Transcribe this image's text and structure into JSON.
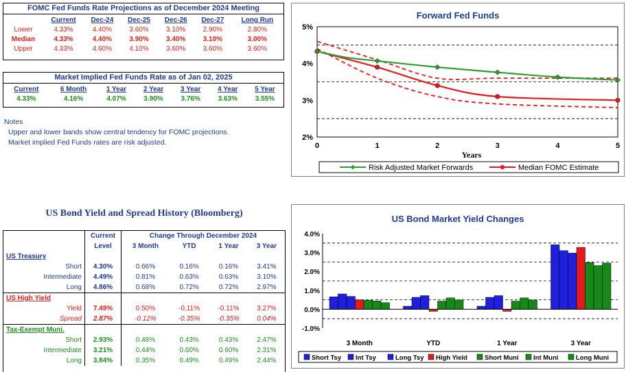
{
  "fomc": {
    "title": "FOMC Fed Funds Rate Projections as of December 2024 Meeting",
    "columns": [
      "Current",
      "Dec-24",
      "Dec-25",
      "Dec-26",
      "Dec-27",
      "Long Run"
    ],
    "rows": [
      {
        "label": "Lower",
        "values": [
          "4.33%",
          "4.40%",
          "3.60%",
          "3.10%",
          "2.90%",
          "2.80%"
        ],
        "color": "#e0201b"
      },
      {
        "label": "Median",
        "values": [
          "4.33%",
          "4.40%",
          "3.90%",
          "3.40%",
          "3.10%",
          "3.00%"
        ],
        "color": "#e0201b"
      },
      {
        "label": "Upper",
        "values": [
          "4.33%",
          "4.60%",
          "4.10%",
          "3.60%",
          "3.60%",
          "3.60%"
        ],
        "color": "#e0201b"
      }
    ]
  },
  "market": {
    "title": "Market Implied Fed Funds Rate as of Jan 02, 2025",
    "columns": [
      "Current",
      "6 Month",
      "1 Year",
      "2 Year",
      "3 Year",
      "4 Year",
      "5 Year"
    ],
    "values": [
      "4.33%",
      "4.16%",
      "4.07%",
      "3.90%",
      "3.76%",
      "3.63%",
      "3.55%"
    ]
  },
  "notes": {
    "heading": "Notes",
    "lines": [
      "Upper and lower bands show central tendency for FOMC projections.",
      "Market implied Fed Funds rates are risk adjusted."
    ]
  },
  "bond": {
    "title": "US Bond Yield and Spread History (Bloomberg)",
    "current_header": [
      "Current",
      "Level"
    ],
    "change_header": "Change Through December 2024",
    "period_headers": [
      "3 Month",
      "YTD",
      "1 Year",
      "3 Year"
    ],
    "sections": [
      {
        "name": "US Treasury",
        "color": "#1f3a93",
        "rows": [
          {
            "label": "Short",
            "current": "4.30%",
            "changes": [
              "0.66%",
              "0.16%",
              "0.16%",
              "3.41%"
            ],
            "italic": false
          },
          {
            "label": "Intermediate",
            "current": "4.49%",
            "changes": [
              "0.81%",
              "0.63%",
              "0.63%",
              "3.10%"
            ],
            "italic": false
          },
          {
            "label": "Long",
            "current": "4.86%",
            "changes": [
              "0.68%",
              "0.72%",
              "0.72%",
              "2.97%"
            ],
            "italic": false
          }
        ]
      },
      {
        "name": "US High Yield",
        "color": "#e0201b",
        "rows": [
          {
            "label": "Yield",
            "current": "7.49%",
            "changes": [
              "0.50%",
              "-0.11%",
              "-0.11%",
              "3.27%"
            ],
            "italic": false
          },
          {
            "label": "Spread",
            "current": "2.87%",
            "changes": [
              "-0.12%",
              "-0.35%",
              "-0.35%",
              "0.04%"
            ],
            "italic": true
          }
        ]
      },
      {
        "name": "Tax-Exempt Muni.",
        "color": "#1e8c1e",
        "rows": [
          {
            "label": "Short",
            "current": "2.93%",
            "changes": [
              "0.48%",
              "0.43%",
              "0.43%",
              "2.47%"
            ],
            "italic": false
          },
          {
            "label": "Intermediate",
            "current": "3.21%",
            "changes": [
              "0.44%",
              "0.60%",
              "0.60%",
              "2.31%"
            ],
            "italic": false
          },
          {
            "label": "Long",
            "current": "3.84%",
            "changes": [
              "0.35%",
              "0.49%",
              "0.49%",
              "2.44%"
            ],
            "italic": false
          }
        ]
      }
    ]
  },
  "chart_data": [
    {
      "type": "line",
      "title": "Forward Fed Funds",
      "xlabel": "Years",
      "ylabel": "",
      "xlim": [
        0,
        5
      ],
      "ylim": [
        2,
        5
      ],
      "x_ticks": [
        "0",
        "1",
        "2",
        "3",
        "4",
        "5"
      ],
      "y_ticks": [
        "2%",
        "3%",
        "4%",
        "5%"
      ],
      "grid": "dashed horizontal at 2.5%, 3.5%, 4.5%",
      "legend_position": "bottom",
      "series": [
        {
          "name": "Risk Adjusted Market Forwards",
          "color": "#2ca02c",
          "marker": "diamond",
          "x": [
            0,
            0.5,
            1,
            2,
            3,
            4,
            5
          ],
          "y": [
            4.33,
            4.16,
            4.07,
            3.9,
            3.76,
            3.63,
            3.55
          ]
        },
        {
          "name": "Median FOMC Estimate",
          "color": "#e41a1c",
          "marker": "circle",
          "x": [
            0,
            1,
            2,
            3,
            5
          ],
          "y": [
            4.33,
            3.9,
            3.4,
            3.1,
            3.0
          ]
        },
        {
          "name": "",
          "color": "#e41a1c",
          "style": "dashed",
          "x": [
            0,
            1,
            2,
            3,
            5
          ],
          "y": [
            4.6,
            4.1,
            3.6,
            3.6,
            3.6
          ]
        },
        {
          "name": "",
          "color": "#e41a1c",
          "style": "dashed",
          "x": [
            0,
            1,
            2,
            3,
            5
          ],
          "y": [
            4.4,
            3.6,
            3.1,
            2.9,
            2.8
          ]
        }
      ]
    },
    {
      "type": "bar",
      "title": "US Bond Market Yield Changes",
      "categories": [
        "3 Month",
        "YTD",
        "1 Year",
        "3 Year"
      ],
      "ylim": [
        -1.0,
        4.0
      ],
      "y_ticks": [
        "-1.0%",
        "0.0%",
        "1.0%",
        "2.0%",
        "3.0%",
        "4.0%"
      ],
      "grid": "dashed horizontal",
      "legend_position": "bottom",
      "series": [
        {
          "name": "Short Tsy",
          "color": "#1f1fdc",
          "values": [
            0.66,
            0.16,
            0.16,
            3.41
          ]
        },
        {
          "name": "Int Tsy",
          "color": "#1f1fdc",
          "values": [
            0.81,
            0.63,
            0.63,
            3.1
          ]
        },
        {
          "name": "Long Tsy",
          "color": "#1f1fdc",
          "values": [
            0.68,
            0.72,
            0.72,
            2.97
          ]
        },
        {
          "name": "High Yield",
          "color": "#e41a1c",
          "values": [
            0.5,
            -0.11,
            -0.11,
            3.27
          ]
        },
        {
          "name": "Short Muni",
          "color": "#168a16",
          "values": [
            0.48,
            0.43,
            0.43,
            2.47
          ]
        },
        {
          "name": "Int Muni",
          "color": "#168a16",
          "values": [
            0.44,
            0.6,
            0.6,
            2.31
          ]
        },
        {
          "name": "Long Muni",
          "color": "#168a16",
          "values": [
            0.35,
            0.49,
            0.49,
            2.44
          ]
        }
      ]
    }
  ]
}
